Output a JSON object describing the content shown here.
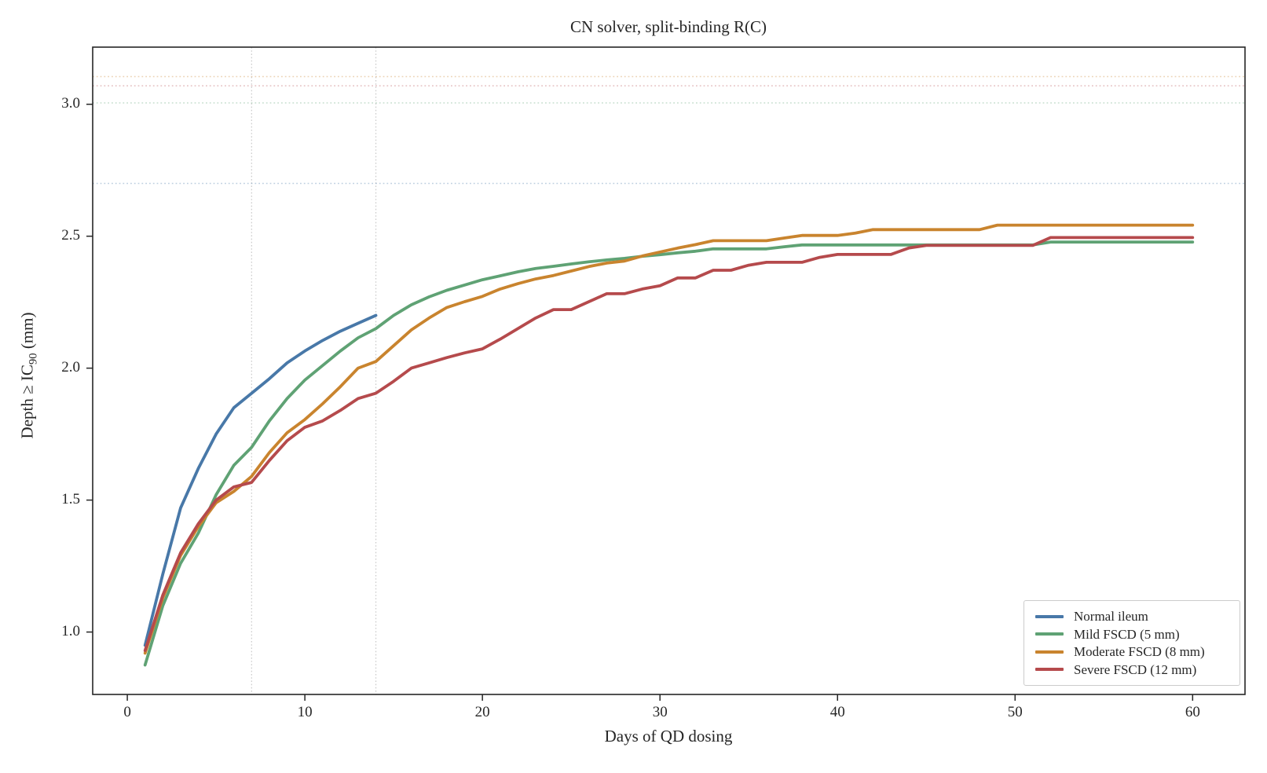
{
  "chart_data": {
    "type": "line",
    "title": "CN solver, split-binding R(C)",
    "xlabel": "Days of QD dosing",
    "ylabel": {
      "prefix": "Depth ≥ IC",
      "sub": "90",
      "suffix": " (mm)"
    },
    "xlim": [
      -1.95,
      62.95
    ],
    "ylim": [
      0.7635,
      3.2165
    ],
    "grid": "off",
    "legend_position": "lower right",
    "xticks": [
      {
        "label": "0",
        "value": 0
      },
      {
        "label": "10",
        "value": 10
      },
      {
        "label": "20",
        "value": 20
      },
      {
        "label": "30",
        "value": 30
      },
      {
        "label": "40",
        "value": 40
      },
      {
        "label": "50",
        "value": 50
      },
      {
        "label": "60",
        "value": 60
      }
    ],
    "yticks": [
      {
        "label": "1.0",
        "value": 1.0
      },
      {
        "label": "1.5",
        "value": 1.5
      },
      {
        "label": "2.0",
        "value": 2.0
      },
      {
        "label": "2.5",
        "value": 2.5
      },
      {
        "label": "3.0",
        "value": 3.0
      }
    ],
    "x": [
      1,
      2,
      3,
      4,
      5,
      6,
      7,
      8,
      9,
      10,
      11,
      12,
      13,
      14,
      15,
      16,
      17,
      18,
      19,
      20,
      21,
      22,
      23,
      24,
      25,
      26,
      27,
      28,
      29,
      30,
      31,
      32,
      33,
      34,
      35,
      36,
      37,
      38,
      39,
      40,
      41,
      42,
      43,
      44,
      45,
      46,
      47,
      48,
      49,
      50,
      51,
      52,
      53,
      54,
      55,
      56,
      57,
      58,
      59,
      60
    ],
    "series": [
      {
        "name": "Normal ileum",
        "color": "#4878a8",
        "values": [
          0.95,
          1.22,
          1.47,
          1.62,
          1.75,
          1.85,
          1.905,
          1.96,
          2.02,
          2.065,
          2.105,
          2.14,
          2.17,
          2.2
        ]
      },
      {
        "name": "Mild FSCD (5 mm)",
        "color": "#5fa274",
        "values": [
          0.875,
          1.1,
          1.26,
          1.375,
          1.52,
          1.632,
          1.7,
          1.8,
          1.885,
          1.955,
          2.01,
          2.065,
          2.115,
          2.15,
          2.2,
          2.24,
          2.27,
          2.295,
          2.315,
          2.335,
          2.35,
          2.365,
          2.378,
          2.386,
          2.395,
          2.403,
          2.41,
          2.416,
          2.424,
          2.43,
          2.437,
          2.443,
          2.452,
          2.452,
          2.452,
          2.452,
          2.46,
          2.467,
          2.467,
          2.467,
          2.467,
          2.467,
          2.467,
          2.467,
          2.467,
          2.467,
          2.467,
          2.467,
          2.467,
          2.467,
          2.467,
          2.478,
          2.478,
          2.478,
          2.478,
          2.478,
          2.478,
          2.478,
          2.478,
          2.478
        ]
      },
      {
        "name": "Moderate FSCD (8 mm)",
        "color": "#c9842e",
        "values": [
          0.92,
          1.13,
          1.29,
          1.4,
          1.49,
          1.533,
          1.59,
          1.68,
          1.755,
          1.805,
          1.865,
          1.93,
          2.0,
          2.025,
          2.085,
          2.145,
          2.19,
          2.23,
          2.252,
          2.272,
          2.3,
          2.32,
          2.338,
          2.351,
          2.368,
          2.385,
          2.398,
          2.406,
          2.425,
          2.44,
          2.455,
          2.468,
          2.483,
          2.483,
          2.483,
          2.483,
          2.493,
          2.503,
          2.503,
          2.503,
          2.512,
          2.525,
          2.525,
          2.525,
          2.525,
          2.525,
          2.525,
          2.525,
          2.542,
          2.542,
          2.542,
          2.542,
          2.542,
          2.542,
          2.542,
          2.542,
          2.542,
          2.542,
          2.542,
          2.542
        ]
      },
      {
        "name": "Severe FSCD (12 mm)",
        "color": "#b54a4c",
        "values": [
          0.93,
          1.14,
          1.3,
          1.41,
          1.5,
          1.55,
          1.567,
          1.65,
          1.725,
          1.776,
          1.8,
          1.84,
          1.885,
          1.905,
          1.95,
          2.0,
          2.02,
          2.04,
          2.058,
          2.073,
          2.11,
          2.15,
          2.19,
          2.222,
          2.222,
          2.252,
          2.282,
          2.282,
          2.3,
          2.312,
          2.342,
          2.342,
          2.371,
          2.371,
          2.39,
          2.401,
          2.401,
          2.401,
          2.42,
          2.431,
          2.431,
          2.431,
          2.431,
          2.455,
          2.465,
          2.465,
          2.465,
          2.465,
          2.465,
          2.465,
          2.465,
          2.495,
          2.495,
          2.495,
          2.495,
          2.495,
          2.495,
          2.495,
          2.495,
          2.495
        ]
      }
    ],
    "reference_lines": [
      {
        "value": 2.7,
        "color": "#4878a8",
        "style": "dotted"
      },
      {
        "value": 3.005,
        "color": "#5fa274",
        "style": "dotted"
      },
      {
        "value": 3.07,
        "color": "#b54a4c",
        "style": "dotted"
      },
      {
        "value": 3.105,
        "color": "#c9842e",
        "style": "dotted"
      }
    ],
    "vertical_guides": {
      "days": [
        7,
        14
      ],
      "color": "#c9c9c9",
      "style": "dotted"
    },
    "frame_color": "#262626",
    "line_width": 3.8
  },
  "legend": {
    "items": [
      {
        "label": "Normal ileum",
        "color": "#4878a8"
      },
      {
        "label": "Mild FSCD (5 mm)",
        "color": "#5fa274"
      },
      {
        "label": "Moderate FSCD (8 mm)",
        "color": "#c9842e"
      },
      {
        "label": "Severe FSCD (12 mm)",
        "color": "#b54a4c"
      }
    ]
  }
}
